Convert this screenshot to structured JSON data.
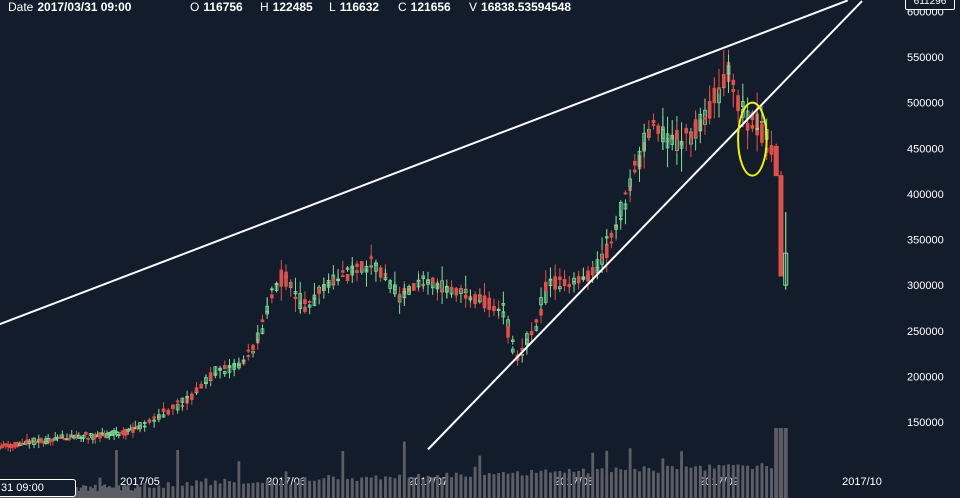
{
  "infobar": {
    "date_label": "Date",
    "date_value": "2017/03/31 09:00",
    "open_label": "O",
    "open_value": "116756",
    "high_label": "H",
    "high_value": "122485",
    "low_label": "L",
    "low_value": "116632",
    "close_label": "C",
    "close_value": "121656",
    "volume_label": "V",
    "volume_value": "16838.53594548"
  },
  "cursor_date_label": "31 09:00",
  "current_price_label": "611296",
  "colors": {
    "background": "#131c2b",
    "up": "#7ddf9a",
    "down": "#e0504a",
    "volume": "#5d5d66",
    "trendline": "#ffffff",
    "highlight": "#f2f200"
  },
  "chart_data": {
    "type": "candlestick",
    "y_axis": {
      "position": "right",
      "range": [
        120000,
        610000
      ],
      "tick_labels": [
        "150000",
        "200000",
        "250000",
        "300000",
        "350000",
        "400000",
        "450000",
        "500000",
        "550000",
        "600000"
      ]
    },
    "x_axis": {
      "tick_labels": [
        "2017/05",
        "2017/06",
        "2017/07",
        "2017/08",
        "2017/09",
        "2017/10"
      ]
    },
    "anchors": {
      "start": "2017/04/01",
      "ticks": [
        "2017/05/01",
        "2017/06/01",
        "2017/07/01",
        "2017/08/01",
        "2017/09/01",
        "2017/10/01"
      ]
    },
    "price_path": [
      [
        "2017/04/01",
        122000
      ],
      [
        "2017/04/08",
        128000
      ],
      [
        "2017/04/15",
        133000
      ],
      [
        "2017/04/22",
        135000
      ],
      [
        "2017/04/29",
        140000
      ],
      [
        "2017/05/06",
        158000
      ],
      [
        "2017/05/13",
        182000
      ],
      [
        "2017/05/17",
        205000
      ],
      [
        "2017/05/22",
        210000
      ],
      [
        "2017/05/26",
        235000
      ],
      [
        "2017/05/30",
        300000
      ],
      [
        "2017/06/01",
        310000
      ],
      [
        "2017/06/05",
        275000
      ],
      [
        "2017/06/10",
        300000
      ],
      [
        "2017/06/15",
        315000
      ],
      [
        "2017/06/20",
        325000
      ],
      [
        "2017/06/25",
        290000
      ],
      [
        "2017/07/01",
        305000
      ],
      [
        "2017/07/06",
        295000
      ],
      [
        "2017/07/12",
        285000
      ],
      [
        "2017/07/17",
        275000
      ],
      [
        "2017/07/20",
        220000
      ],
      [
        "2017/07/24",
        255000
      ],
      [
        "2017/07/27",
        305000
      ],
      [
        "2017/08/01",
        300000
      ],
      [
        "2017/08/06",
        315000
      ],
      [
        "2017/08/10",
        360000
      ],
      [
        "2017/08/14",
        420000
      ],
      [
        "2017/08/18",
        480000
      ],
      [
        "2017/08/22",
        455000
      ],
      [
        "2017/08/27",
        470000
      ],
      [
        "2017/09/01",
        510000
      ],
      [
        "2017/09/03",
        535000
      ],
      [
        "2017/09/05",
        500000
      ],
      [
        "2017/09/08",
        480000
      ],
      [
        "2017/09/11",
        460000
      ],
      [
        "2017/09/13",
        445000
      ],
      [
        "2017/09/15",
        310000
      ]
    ],
    "notable_candles": [
      [
        "2017/09/13",
        452000,
        455000,
        425000,
        420000
      ],
      [
        "2017/09/14",
        420000,
        425000,
        315000,
        310000
      ],
      [
        "2017/09/15",
        300000,
        380000,
        295000,
        335000
      ]
    ],
    "annotations": [
      {
        "type": "trendline",
        "from": [
          "2017/03/26",
          245000
        ],
        "to": [
          "2017/09/28",
          612000
        ]
      },
      {
        "type": "trendline",
        "from": [
          "2017/07/01",
          120000
        ],
        "to": [
          "2017/10/01",
          611296
        ]
      },
      {
        "type": "ellipse",
        "center": [
          "2017/09/08",
          460000
        ],
        "rx_days": 3.6,
        "ry_value": 40000
      }
    ]
  }
}
